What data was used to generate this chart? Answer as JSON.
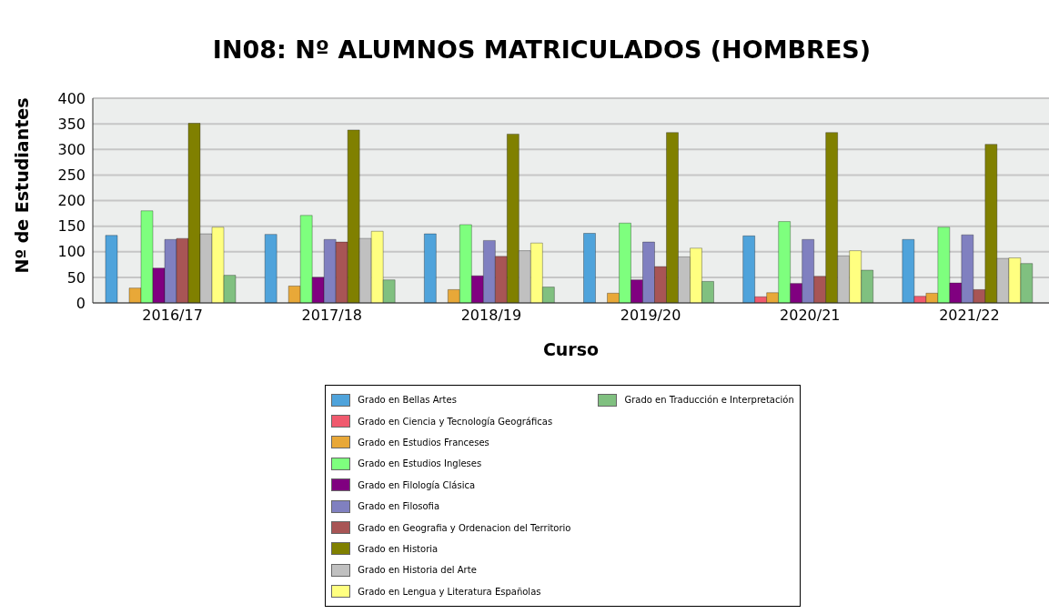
{
  "chart_data": {
    "type": "bar",
    "title": "IN08: Nº ALUMNOS MATRICULADOS (HOMBRES)",
    "xlabel": "Curso",
    "ylabel": "Nº de Estudiantes",
    "categories": [
      "2016/17",
      "2017/18",
      "2018/19",
      "2019/20",
      "2020/21",
      "2021/22"
    ],
    "series": [
      {
        "name": "Grado en Bellas Artes",
        "color": "#4fa3db",
        "values": [
          132,
          134,
          135,
          136,
          131,
          124
        ]
      },
      {
        "name": "Grado en Ciencia y Tecnología Geográficas",
        "color": "#f05a6e",
        "values": [
          null,
          null,
          null,
          null,
          12,
          13
        ]
      },
      {
        "name": "Grado en Estudios Franceses",
        "color": "#e8a838",
        "values": [
          29,
          33,
          26,
          19,
          20,
          19
        ]
      },
      {
        "name": "Grado en Estudios Ingleses",
        "color": "#7eff7e",
        "values": [
          180,
          171,
          153,
          156,
          159,
          148
        ]
      },
      {
        "name": "Grado en Filología Clásica",
        "color": "#800080",
        "values": [
          68,
          50,
          53,
          45,
          38,
          39
        ]
      },
      {
        "name": "Grado en Filosofia",
        "color": "#8080c0",
        "values": [
          124,
          124,
          122,
          119,
          124,
          133
        ]
      },
      {
        "name": "Grado en Geografia y Ordenacion del Territorio",
        "color": "#a85555",
        "values": [
          126,
          119,
          91,
          71,
          52,
          26
        ]
      },
      {
        "name": "Grado en Historia",
        "color": "#808000",
        "values": [
          351,
          338,
          330,
          333,
          333,
          310
        ]
      },
      {
        "name": "Grado en Historia del Arte",
        "color": "#c0c0c0",
        "values": [
          135,
          126,
          102,
          90,
          92,
          87
        ]
      },
      {
        "name": "Grado en Lengua y Literatura Españolas",
        "color": "#ffff80",
        "values": [
          148,
          140,
          117,
          107,
          102,
          88
        ]
      },
      {
        "name": "Grado en Traducción e Interpretación",
        "color": "#80c080",
        "values": [
          54,
          45,
          31,
          42,
          64,
          77
        ]
      }
    ],
    "ylim": [
      0,
      400
    ],
    "yticks": [
      0,
      50,
      100,
      150,
      200,
      250,
      300,
      350,
      400
    ],
    "grid": "y",
    "legend": "bottom"
  }
}
